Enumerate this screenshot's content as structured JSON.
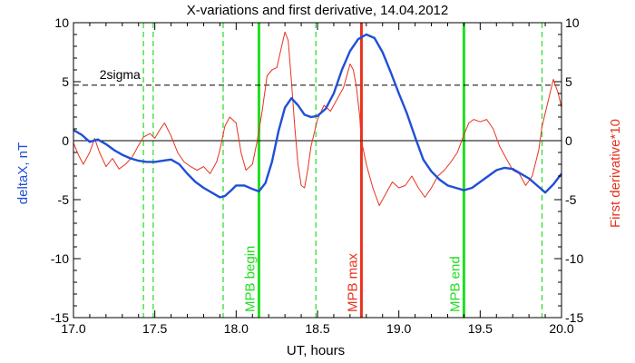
{
  "chart_data": {
    "type": "line",
    "title": "X-variations and first derivative, 14.04.2012",
    "xlabel": "UT, hours",
    "ylabel_left": "deltaX, nT",
    "ylabel_right": "First derivative*10",
    "xlim": [
      17.0,
      20.0
    ],
    "ylim": [
      -15,
      10
    ],
    "x_ticks": [
      "17.0",
      "17.5",
      "18.0",
      "18.5",
      "19.0",
      "19.5",
      "20.0"
    ],
    "y_ticks_left": [
      "-15",
      "-10",
      "-5",
      "0",
      "5",
      "10"
    ],
    "y_ticks_right": [
      "-15",
      "-10",
      "-5",
      "0",
      "5",
      "10"
    ],
    "threshold": {
      "label": "2sigma",
      "value": 4.7
    },
    "zero_line": 0,
    "markers": [
      {
        "x": 18.14,
        "label": "MPB begin",
        "color": "#22dd22"
      },
      {
        "x": 18.77,
        "label": "MPB max",
        "color": "#e8321e"
      },
      {
        "x": 19.4,
        "label": "MPB end",
        "color": "#22dd22"
      }
    ],
    "dashed_verticals": [
      17.43,
      17.49,
      17.92,
      18.49,
      19.88
    ],
    "series": [
      {
        "axis": "left",
        "color": "#1f4fd6",
        "x": [
          17.0,
          17.05,
          17.1,
          17.15,
          17.2,
          17.25,
          17.3,
          17.35,
          17.4,
          17.45,
          17.5,
          17.55,
          17.6,
          17.65,
          17.7,
          17.75,
          17.8,
          17.85,
          17.9,
          17.93,
          17.97,
          18.0,
          18.05,
          18.1,
          18.14,
          18.18,
          18.22,
          18.26,
          18.3,
          18.34,
          18.38,
          18.42,
          18.46,
          18.5,
          18.55,
          18.6,
          18.65,
          18.7,
          18.75,
          18.8,
          18.85,
          18.9,
          18.95,
          19.0,
          19.05,
          19.1,
          19.15,
          19.2,
          19.25,
          19.3,
          19.35,
          19.4,
          19.45,
          19.5,
          19.55,
          19.6,
          19.65,
          19.7,
          19.75,
          19.8,
          19.85,
          19.9,
          19.95,
          20.0
        ],
        "y": [
          0.9,
          0.5,
          -0.1,
          0.1,
          -0.3,
          -0.8,
          -1.2,
          -1.5,
          -1.7,
          -1.8,
          -1.8,
          -1.7,
          -1.6,
          -2.0,
          -2.8,
          -3.5,
          -4.0,
          -4.4,
          -4.8,
          -4.7,
          -4.2,
          -3.8,
          -3.8,
          -4.1,
          -4.3,
          -3.6,
          -1.8,
          0.8,
          2.8,
          3.6,
          3.0,
          2.2,
          2.0,
          2.1,
          2.7,
          4.0,
          6.0,
          7.6,
          8.6,
          9.0,
          8.7,
          7.5,
          5.8,
          4.0,
          2.3,
          0.3,
          -1.6,
          -2.6,
          -3.3,
          -3.8,
          -4.0,
          -4.2,
          -4.0,
          -3.5,
          -3.0,
          -2.5,
          -2.3,
          -2.4,
          -2.8,
          -3.2,
          -3.8,
          -4.4,
          -3.7,
          -2.8
        ]
      },
      {
        "axis": "right",
        "color": "#e8321e",
        "x": [
          17.0,
          17.03,
          17.06,
          17.1,
          17.13,
          17.16,
          17.2,
          17.24,
          17.28,
          17.32,
          17.36,
          17.4,
          17.43,
          17.47,
          17.5,
          17.53,
          17.56,
          17.6,
          17.64,
          17.68,
          17.72,
          17.76,
          17.8,
          17.84,
          17.88,
          17.9,
          17.93,
          17.96,
          18.0,
          18.03,
          18.06,
          18.1,
          18.13,
          18.16,
          18.19,
          18.22,
          18.25,
          18.28,
          18.3,
          18.32,
          18.34,
          18.36,
          18.38,
          18.4,
          18.42,
          18.44,
          18.46,
          18.5,
          18.54,
          18.58,
          18.62,
          18.66,
          18.7,
          18.72,
          18.74,
          18.76,
          18.77,
          18.8,
          18.84,
          18.88,
          18.92,
          18.96,
          19.0,
          19.04,
          19.08,
          19.12,
          19.16,
          19.2,
          19.24,
          19.28,
          19.32,
          19.36,
          19.4,
          19.43,
          19.46,
          19.5,
          19.54,
          19.58,
          19.62,
          19.66,
          19.7,
          19.74,
          19.78,
          19.82,
          19.86,
          19.88,
          19.92,
          19.95,
          19.98,
          20.0
        ],
        "y": [
          -0.2,
          -1.2,
          -2.0,
          -1.0,
          0.2,
          -1.0,
          -2.2,
          -1.5,
          -2.4,
          -2.0,
          -1.4,
          -0.4,
          0.3,
          0.6,
          0.2,
          0.9,
          1.5,
          0.4,
          -1.0,
          -1.8,
          -2.2,
          -2.5,
          -2.2,
          -2.8,
          -1.8,
          -0.8,
          1.2,
          2.0,
          1.5,
          -1.0,
          -2.5,
          -2.0,
          0.0,
          2.5,
          5.5,
          6.0,
          6.2,
          8.0,
          9.2,
          8.5,
          5.0,
          1.2,
          -2.0,
          -3.8,
          -4.0,
          -2.5,
          -0.5,
          1.8,
          3.0,
          2.5,
          3.5,
          4.5,
          6.5,
          6.0,
          4.5,
          2.0,
          0.0,
          -2.0,
          -4.0,
          -5.5,
          -4.5,
          -3.5,
          -4.0,
          -3.8,
          -3.0,
          -4.0,
          -4.8,
          -4.0,
          -3.0,
          -2.5,
          -1.8,
          -1.0,
          0.5,
          1.5,
          1.8,
          1.6,
          1.8,
          1.0,
          -0.5,
          -1.5,
          -2.5,
          -2.8,
          -3.8,
          -3.0,
          -0.8,
          1.2,
          3.5,
          5.2,
          4.0,
          2.8
        ]
      }
    ]
  }
}
